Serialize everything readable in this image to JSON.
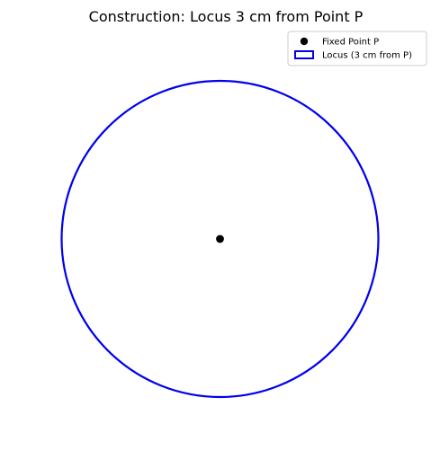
{
  "title": "Construction: Locus 3 cm from Point P",
  "legend": {
    "items": [
      {
        "label": "Fixed Point P",
        "marker": "filled-circle",
        "color": "#000000"
      },
      {
        "label": "Locus (3 cm from P)",
        "marker": "outlined-rectangle",
        "color": "#0000ee"
      }
    ]
  },
  "construction": {
    "fixed_point": {
      "name": "P",
      "x": 0,
      "y": 0,
      "color": "#000000"
    },
    "locus": {
      "shape": "circle",
      "center": "P",
      "radius": 3,
      "unit": "cm",
      "color": "#0000ee"
    }
  },
  "axes_visible": false
}
